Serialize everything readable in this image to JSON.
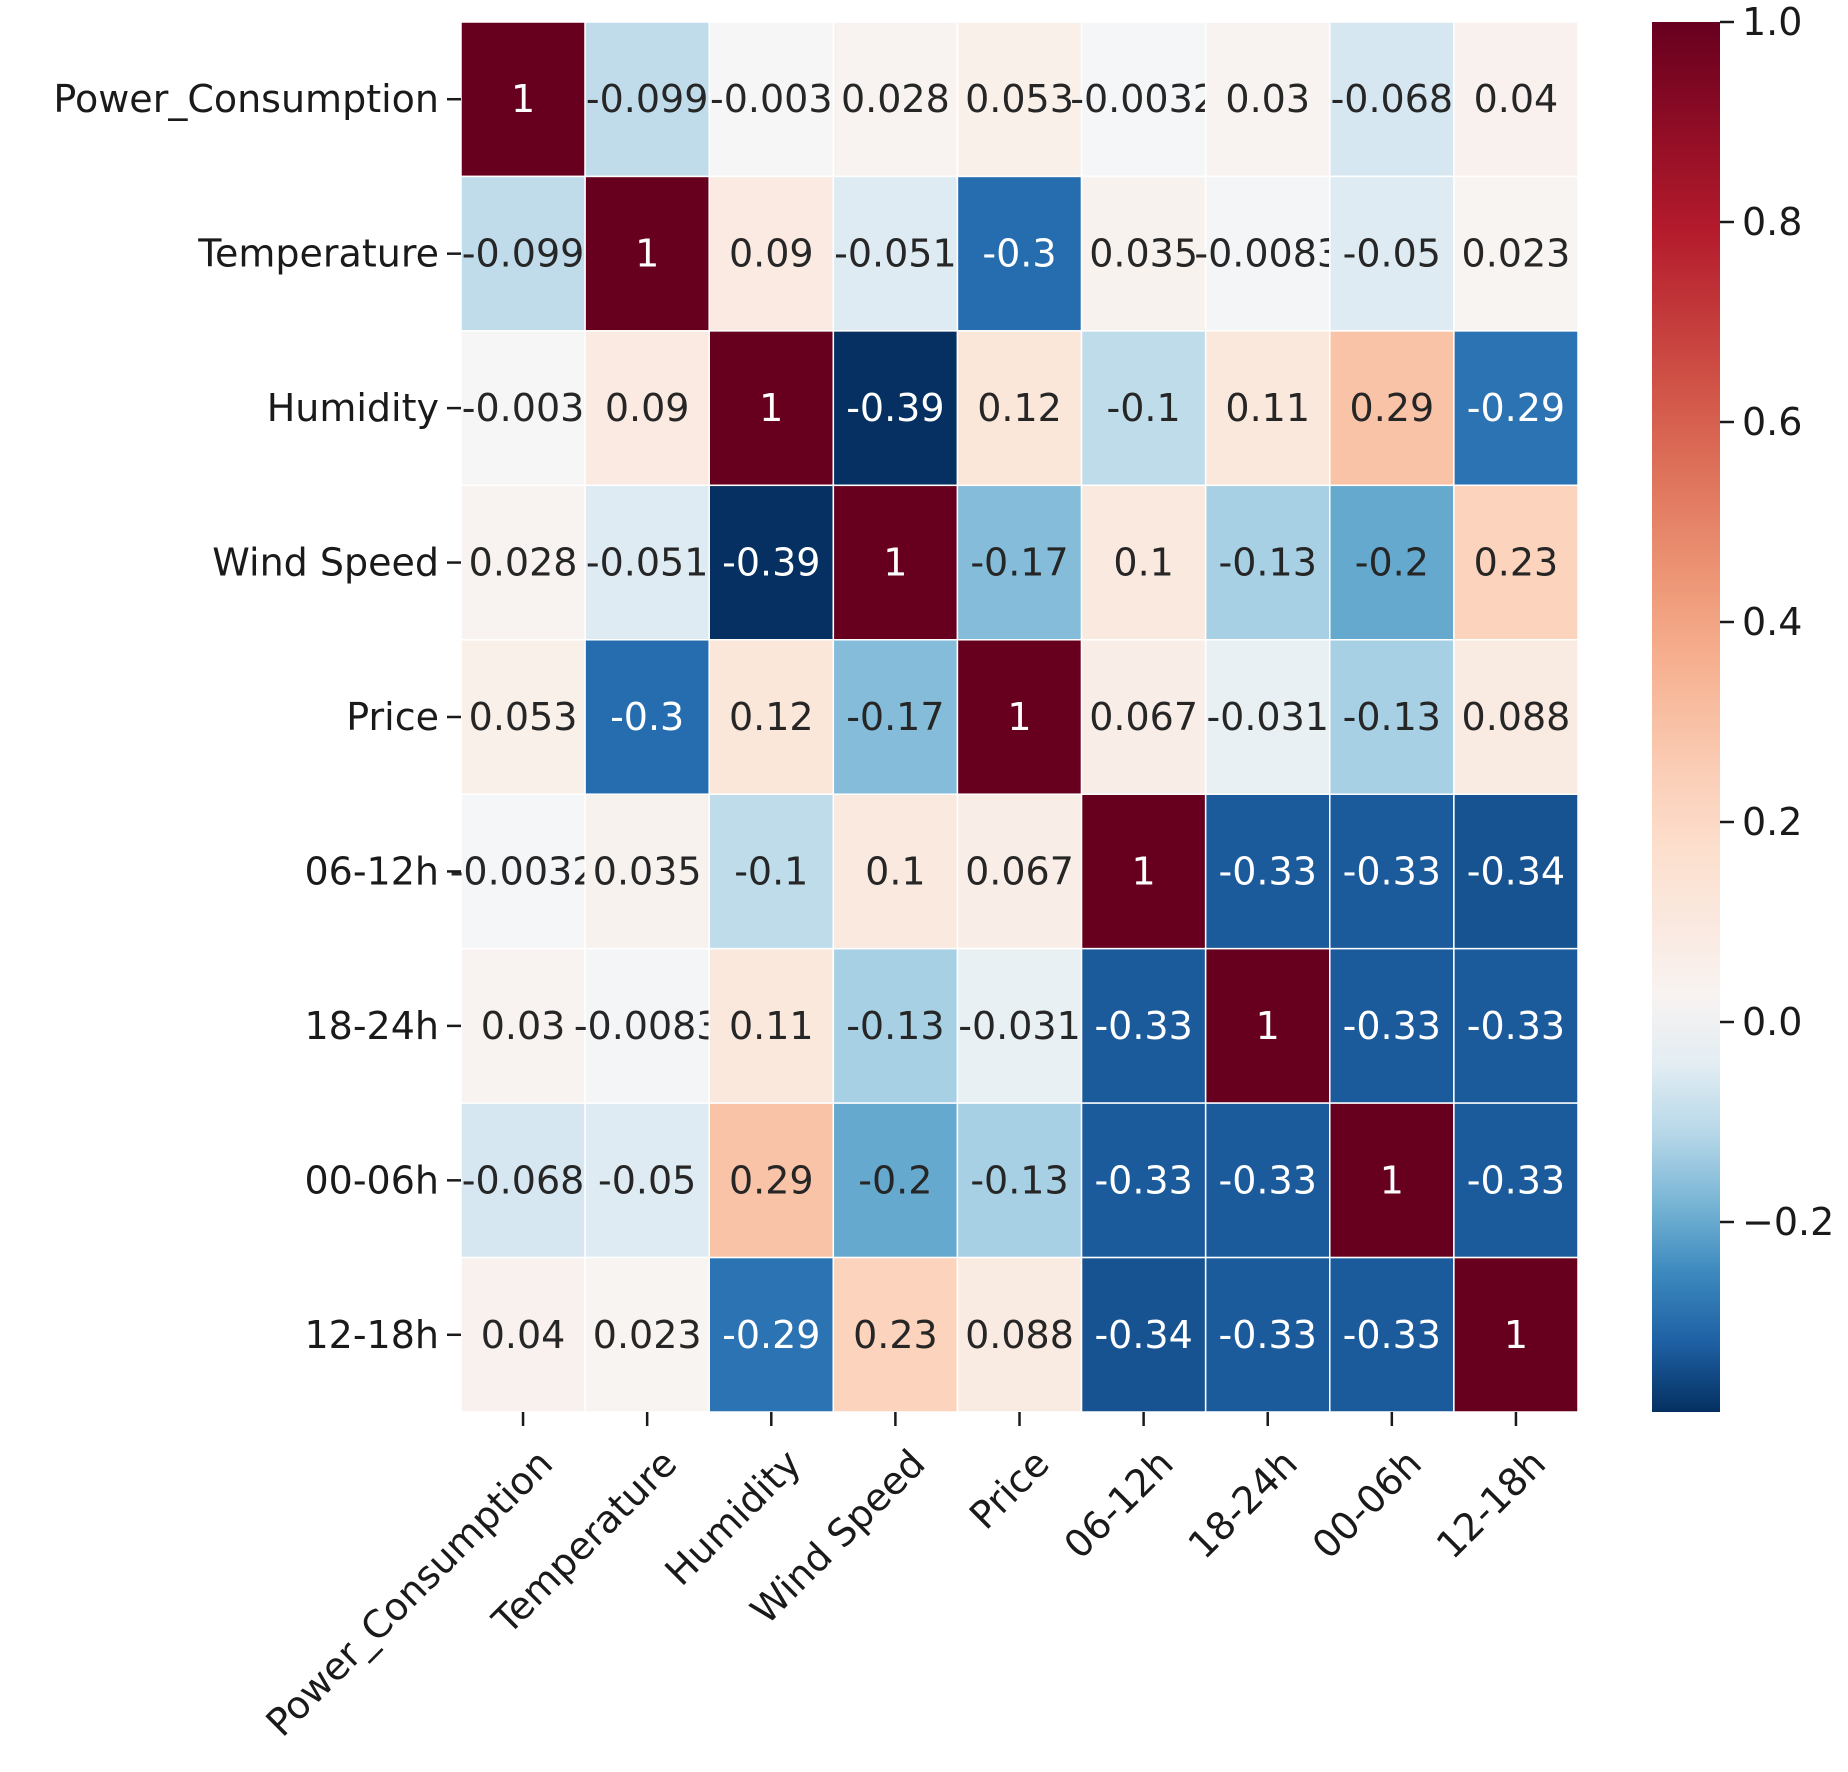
{
  "chart_data": {
    "type": "heatmap",
    "title": "",
    "xlabel": "",
    "ylabel": "",
    "labels": [
      "Power_Consumption",
      "Temperature",
      "Humidity",
      "Wind Speed",
      "Price",
      "06-12h",
      "18-24h",
      "00-06h",
      "12-18h"
    ],
    "matrix": [
      [
        1,
        -0.099,
        -0.003,
        0.028,
        0.053,
        -0.0032,
        0.03,
        -0.068,
        0.04
      ],
      [
        -0.099,
        1,
        0.09,
        -0.051,
        -0.3,
        0.035,
        -0.0083,
        -0.05,
        0.023
      ],
      [
        -0.003,
        0.09,
        1,
        -0.39,
        0.12,
        -0.1,
        0.11,
        0.29,
        -0.29
      ],
      [
        0.028,
        -0.051,
        -0.39,
        1,
        -0.17,
        0.1,
        -0.13,
        -0.2,
        0.23
      ],
      [
        0.053,
        -0.3,
        0.12,
        -0.17,
        1,
        0.067,
        -0.031,
        -0.13,
        0.088
      ],
      [
        -0.0032,
        0.035,
        -0.1,
        0.1,
        0.067,
        1,
        -0.33,
        -0.33,
        -0.34
      ],
      [
        0.03,
        -0.0083,
        0.11,
        -0.13,
        -0.031,
        -0.33,
        1,
        -0.33,
        -0.33
      ],
      [
        -0.068,
        -0.05,
        0.29,
        -0.2,
        -0.13,
        -0.33,
        -0.33,
        1,
        -0.33
      ],
      [
        0.04,
        0.023,
        -0.29,
        0.23,
        0.088,
        -0.34,
        -0.33,
        -0.33,
        1
      ]
    ],
    "cell_text": [
      [
        "1",
        "-0.099",
        "-0.003",
        "0.028",
        "0.053",
        "-0.0032",
        "0.03",
        "-0.068",
        "0.04"
      ],
      [
        "-0.099",
        "1",
        "0.09",
        "-0.051",
        "-0.3",
        "0.035",
        "-0.0083",
        "-0.05",
        "0.023"
      ],
      [
        "-0.003",
        "0.09",
        "1",
        "-0.39",
        "0.12",
        "-0.1",
        "0.11",
        "0.29",
        "-0.29"
      ],
      [
        "0.028",
        "-0.051",
        "-0.39",
        "1",
        "-0.17",
        "0.1",
        "-0.13",
        "-0.2",
        "0.23"
      ],
      [
        "0.053",
        "-0.3",
        "0.12",
        "-0.17",
        "1",
        "0.067",
        "-0.031",
        "-0.13",
        "0.088"
      ],
      [
        "-0.0032",
        "0.035",
        "-0.1",
        "0.1",
        "0.067",
        "1",
        "-0.33",
        "-0.33",
        "-0.34"
      ],
      [
        "0.03",
        "-0.0083",
        "0.11",
        "-0.13",
        "-0.031",
        "-0.33",
        "1",
        "-0.33",
        "-0.33"
      ],
      [
        "-0.068",
        "-0.05",
        "0.29",
        "-0.2",
        "-0.13",
        "-0.33",
        "-0.33",
        "1",
        "-0.33"
      ],
      [
        "0.04",
        "0.023",
        "-0.29",
        "0.23",
        "0.088",
        "-0.34",
        "-0.33",
        "-0.33",
        "1"
      ]
    ],
    "colormap": "RdBu_r",
    "colorbar": {
      "range": [
        -0.39,
        1.0
      ],
      "ticks": [
        1.0,
        0.8,
        0.6,
        0.4,
        0.2,
        0.0,
        -0.2
      ],
      "tick_labels": [
        "1.0",
        "0.8",
        "0.6",
        "0.4",
        "0.2",
        "0.0",
        "−0.2"
      ]
    },
    "grid": true,
    "cell_border_color": "#ffffff",
    "colors": {
      "dark_red": "#67001f",
      "dark_blue": "#053061",
      "neutral": "#f7f7f7"
    }
  }
}
